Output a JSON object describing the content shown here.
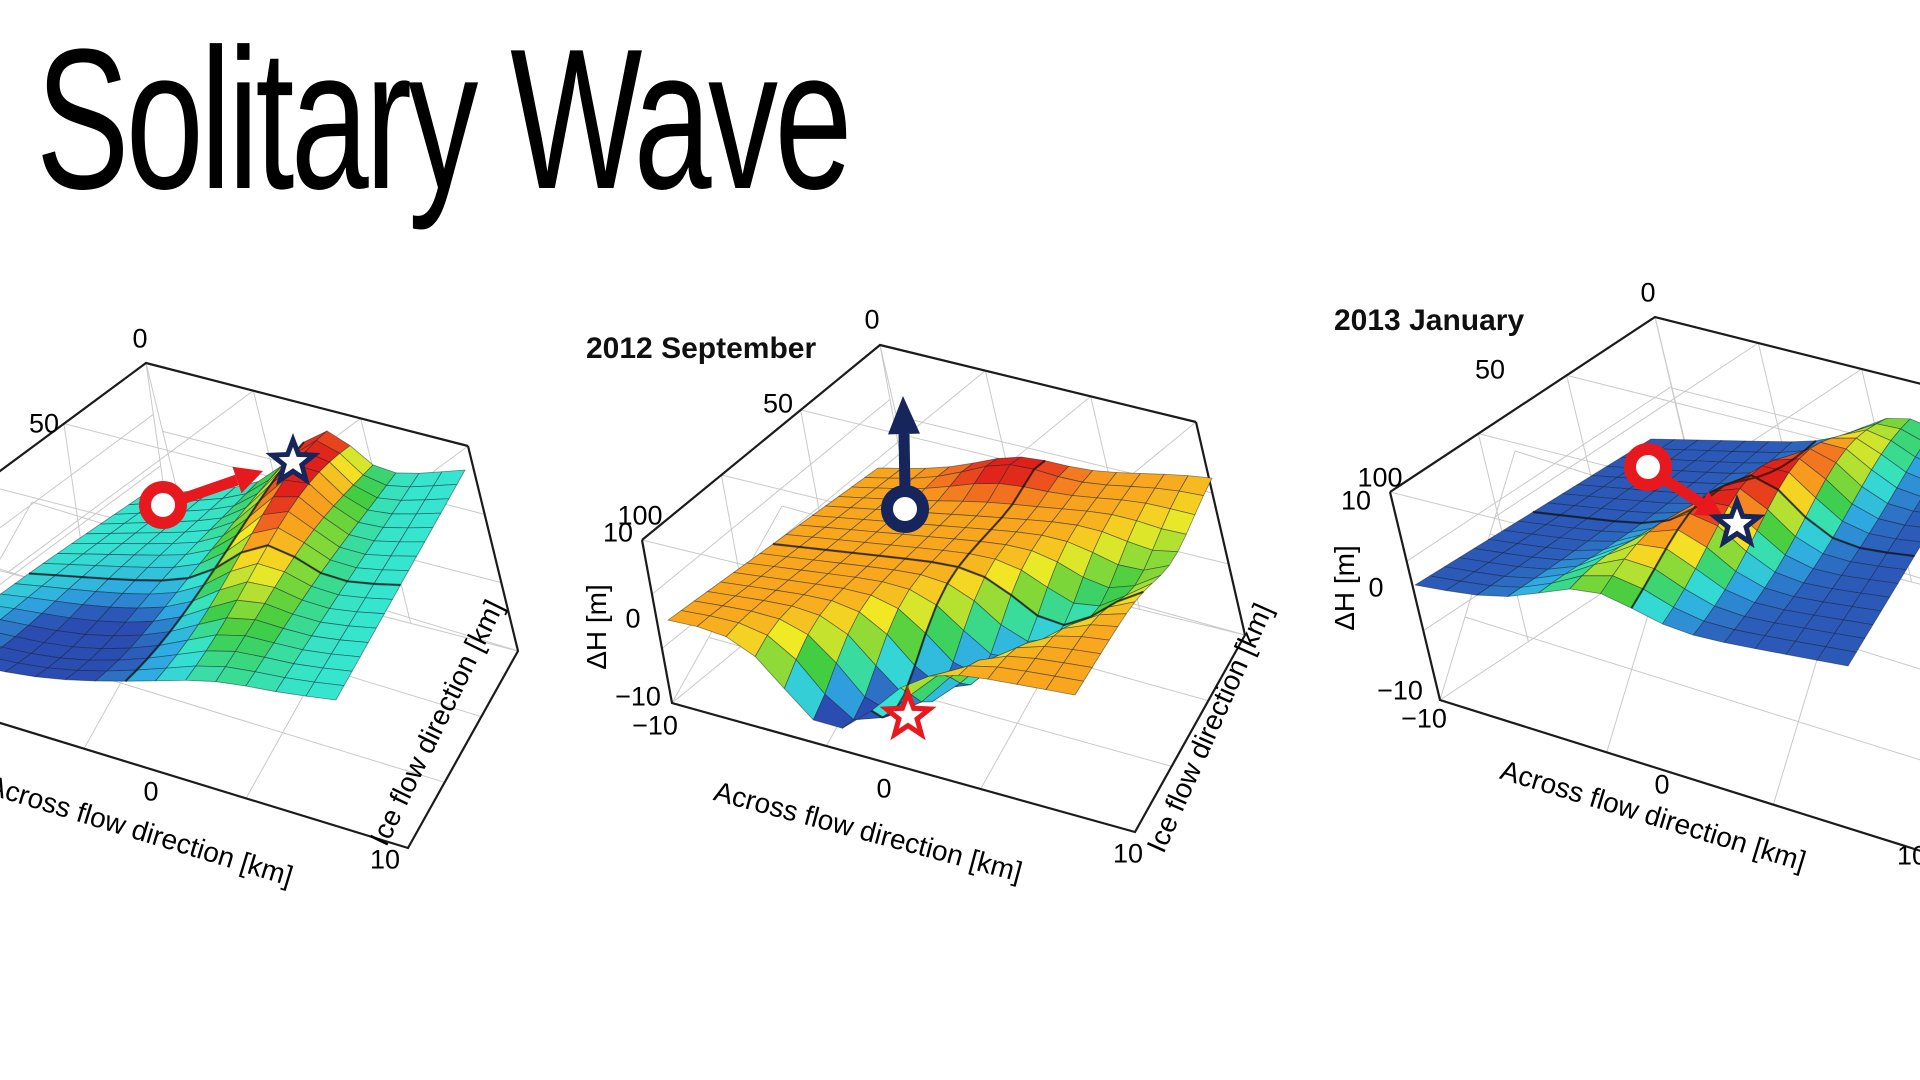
{
  "page": {
    "title": "Solitary Wave",
    "background": "#ffffff"
  },
  "colors": {
    "marker_red": "#E8191E",
    "marker_navy": "#16265C",
    "surface_base_left": "#36E5CF",
    "surface_base_middle": "#F8A61E",
    "surface_base_right": "#2B4DB2",
    "colormap": "jet-like (blue - cyan - green - yellow - orange - red)",
    "box_edge": "#1b1b1b",
    "wall_grid": "#c9c9c9"
  },
  "plots": [
    {
      "id": "plot-early",
      "title": "",
      "ticks": {
        "ice": [
          "0",
          "50"
        ],
        "across": [
          "0",
          "10"
        ],
        "dh": []
      },
      "labels": {
        "across": "Across flow direction [km]",
        "ice": "Ice flow direction [km]"
      },
      "markers": {
        "start": "red circle marker on flat surface",
        "arrow": "red arrow pointing toward ridge crest",
        "end": "navy star marker on ridge crest"
      }
    },
    {
      "id": "plot-2012-september",
      "title": "2012 September",
      "ticks": {
        "ice": [
          "0",
          "50",
          "100"
        ],
        "across": [
          "−10",
          "0",
          "10"
        ],
        "dh": [
          "10",
          "0",
          "−10"
        ]
      },
      "labels": {
        "across": "Across flow direction [km]",
        "ice": "Ice flow direction [km]",
        "dh": "ΔH [m]"
      },
      "markers": {
        "start": "navy circle marker on flat surface",
        "arrow": "navy arrow pointing straight up (uplift)",
        "end": "red star marker in trough"
      }
    },
    {
      "id": "plot-2013-january",
      "title": "2013 January",
      "ticks": {
        "ice": [
          "0",
          "50",
          "100"
        ],
        "across": [
          "−10",
          "0",
          "10"
        ],
        "dh": [
          "10",
          "0",
          "−10"
        ]
      },
      "labels": {
        "across": "Across flow direction [km]",
        "dh": "ΔH [m]"
      },
      "markers": {
        "start": "red circle marker on flat surface",
        "arrow": "red arrow pointing toward ridge crest",
        "end": "navy star marker on ridge crest"
      }
    }
  ],
  "chart_data": [
    {
      "type": "surface",
      "title": "",
      "x_axis": {
        "label": "Across flow direction [km]",
        "range": [
          -10,
          10
        ],
        "visible_ticks": [
          0,
          10
        ]
      },
      "y_axis": {
        "label": "Ice flow direction [km]",
        "range": [
          0,
          100
        ],
        "visible_ticks": [
          0,
          50
        ]
      },
      "z_axis": {
        "label": "ΔH [m]",
        "range": [
          -10,
          10
        ]
      },
      "base_level_m": 0,
      "features": [
        {
          "kind": "ridge",
          "peak_dh_m": 10,
          "across_km": 3,
          "along_ice_km": [
            0,
            60
          ],
          "color_at_peak": "red"
        },
        {
          "kind": "shallow depression",
          "dh_m": -4,
          "across_km": -4,
          "ice_km": 85,
          "color": "blue"
        }
      ],
      "annotations": [
        {
          "marker": "red circle",
          "across_km": -4,
          "ice_km": 25
        },
        {
          "marker": "red arrow",
          "meaning": "from circle to star (toward crest)"
        },
        {
          "marker": "navy star",
          "across_km": 3,
          "ice_km": 12,
          "note": "on ridge crest"
        }
      ]
    },
    {
      "type": "surface",
      "title": "2012 September",
      "x_axis": {
        "label": "Across flow direction [km]",
        "range": [
          -10,
          10
        ],
        "visible_ticks": [
          -10,
          0,
          10
        ]
      },
      "y_axis": {
        "label": "Ice flow direction [km]",
        "range": [
          0,
          100
        ],
        "visible_ticks": [
          0,
          50,
          100
        ]
      },
      "z_axis": {
        "label": "ΔH [m]",
        "range": [
          -10,
          10
        ],
        "visible_ticks": [
          10,
          0,
          -10
        ]
      },
      "base_level_m": 3,
      "features": [
        {
          "kind": "trough",
          "min_dh_m": -10,
          "runs": "diagonally from far right edge to near front",
          "color_at_bottom": "blue"
        },
        {
          "kind": "small high patch",
          "dh_m": 8,
          "location": "far edge",
          "color": "red"
        }
      ],
      "annotations": [
        {
          "marker": "navy circle",
          "across_km": -2,
          "ice_km": 45
        },
        {
          "marker": "navy arrow",
          "meaning": "pointing vertically upward (uplift)"
        },
        {
          "marker": "red star",
          "across_km": 1,
          "ice_km": 95,
          "note": "at trough bottom"
        }
      ]
    },
    {
      "type": "surface",
      "title": "2013 January",
      "x_axis": {
        "label": "Across flow direction [km]",
        "range": [
          -10,
          10
        ],
        "visible_ticks": [
          -10,
          0,
          10
        ]
      },
      "y_axis": {
        "label": "Ice flow direction [km]",
        "range": [
          0,
          100
        ],
        "visible_ticks": [
          0,
          50,
          100
        ]
      },
      "z_axis": {
        "label": "ΔH [m]",
        "range": [
          -10,
          10
        ],
        "visible_ticks": [
          10,
          0,
          -10
        ]
      },
      "base_level_m": -5,
      "features": [
        {
          "kind": "ridge",
          "peak_dh_m": 10,
          "runs": "diagonally across surface",
          "color_at_peak": "red"
        }
      ],
      "annotations": [
        {
          "marker": "red circle",
          "across_km": -4,
          "ice_km": 40
        },
        {
          "marker": "red arrow",
          "meaning": "from circle to star (toward crest)"
        },
        {
          "marker": "navy star",
          "across_km": 1,
          "ice_km": 55,
          "note": "on ridge crest"
        }
      ]
    }
  ]
}
